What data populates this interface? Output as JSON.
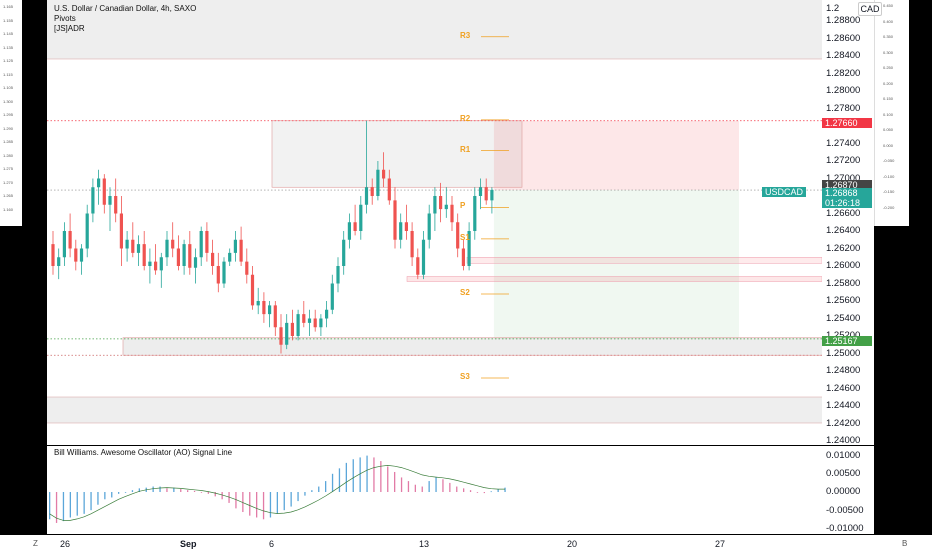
{
  "chart_header": {
    "symbol_line": "U.S. Dollar / Canadian Dollar, 4h, SAXO",
    "indicator_1": "Pivots",
    "indicator_2": "[JS]ADR"
  },
  "currency_button": "CAD",
  "price_axis_ticks": [
    "1.28800",
    "1.28600",
    "1.28400",
    "1.28200",
    "1.28000",
    "1.27800",
    "1.27600",
    "1.27400",
    "1.27200",
    "1.27000",
    "1.26800",
    "1.26600",
    "1.26400",
    "1.26200",
    "1.26000",
    "1.25800",
    "1.25600",
    "1.25400",
    "1.25200",
    "1.25000",
    "1.24800",
    "1.24600",
    "1.24400",
    "1.24200",
    "1.24000"
  ],
  "price_axis_top_tick": "1.2",
  "price_badges": {
    "target": "1.27660",
    "previous": "1.26870",
    "current": "1.26868",
    "countdown": "01:26:18",
    "stop": "1.25167"
  },
  "symbol_tag": "USDCAD",
  "pivot_labels": [
    "R3",
    "R2",
    "R1",
    "P",
    "S1",
    "S2",
    "S3"
  ],
  "oscillator": {
    "title": "Bill Williams. Awesome Oscillator (AO) Signal Line",
    "ticks": [
      "0.01000",
      "0.00500",
      "0.00000",
      "-0.00500",
      "-0.01000"
    ]
  },
  "time_axis": [
    "26",
    "Sep",
    "6",
    "13",
    "20",
    "27"
  ],
  "corner_buttons": {
    "left": "Z",
    "right": "B"
  },
  "left_strip_ticks": [
    "1.165",
    "1.155",
    "1.145",
    "1.135",
    "1.125",
    "1.115",
    "1.105",
    "1.300",
    "1.295",
    "1.290",
    "1.285",
    "1.280",
    "1.275",
    "1.270",
    "1.265",
    "1.160"
  ],
  "right_strip_ticks": [
    "0.450",
    "0.400",
    "0.350",
    "0.300",
    "0.250",
    "0.200",
    "0.150",
    "0.100",
    "0.050",
    "0.000",
    "-0.050",
    "-0.100",
    "-0.150",
    "-0.200"
  ],
  "colors": {
    "bull": "#26a69a",
    "bear": "#ef5350",
    "pivot": "#f0a020",
    "target": "#f23645",
    "stop": "#43a047",
    "symbol": "#26a69a"
  },
  "chart_data": {
    "type": "candlestick",
    "title": "U.S. Dollar / Canadian Dollar, 4h, SAXO",
    "ylim": [
      1.24,
      1.29
    ],
    "x_ticks": [
      "26",
      "Sep",
      "6",
      "13",
      "20",
      "27"
    ],
    "position": {
      "entry": 1.26868,
      "target": 1.2766,
      "stop": 1.25167
    },
    "candles": [
      {
        "o": 1.2625,
        "h": 1.264,
        "l": 1.259,
        "c": 1.26
      },
      {
        "o": 1.26,
        "h": 1.262,
        "l": 1.2585,
        "c": 1.261
      },
      {
        "o": 1.261,
        "h": 1.265,
        "l": 1.26,
        "c": 1.264
      },
      {
        "o": 1.264,
        "h": 1.266,
        "l": 1.261,
        "c": 1.262
      },
      {
        "o": 1.262,
        "h": 1.263,
        "l": 1.2595,
        "c": 1.2605
      },
      {
        "o": 1.2605,
        "h": 1.2625,
        "l": 1.259,
        "c": 1.262
      },
      {
        "o": 1.262,
        "h": 1.267,
        "l": 1.261,
        "c": 1.266
      },
      {
        "o": 1.266,
        "h": 1.27,
        "l": 1.265,
        "c": 1.269
      },
      {
        "o": 1.269,
        "h": 1.271,
        "l": 1.267,
        "c": 1.27
      },
      {
        "o": 1.27,
        "h": 1.2705,
        "l": 1.266,
        "c": 1.267
      },
      {
        "o": 1.267,
        "h": 1.269,
        "l": 1.264,
        "c": 1.268
      },
      {
        "o": 1.268,
        "h": 1.27,
        "l": 1.265,
        "c": 1.266
      },
      {
        "o": 1.266,
        "h": 1.268,
        "l": 1.26,
        "c": 1.262
      },
      {
        "o": 1.262,
        "h": 1.264,
        "l": 1.2605,
        "c": 1.263
      },
      {
        "o": 1.263,
        "h": 1.265,
        "l": 1.261,
        "c": 1.2615
      },
      {
        "o": 1.2615,
        "h": 1.2635,
        "l": 1.26,
        "c": 1.2625
      },
      {
        "o": 1.2625,
        "h": 1.264,
        "l": 1.2595,
        "c": 1.26
      },
      {
        "o": 1.26,
        "h": 1.262,
        "l": 1.258,
        "c": 1.2605
      },
      {
        "o": 1.2605,
        "h": 1.2625,
        "l": 1.259,
        "c": 1.2595
      },
      {
        "o": 1.2595,
        "h": 1.2615,
        "l": 1.2575,
        "c": 1.261
      },
      {
        "o": 1.261,
        "h": 1.264,
        "l": 1.26,
        "c": 1.263
      },
      {
        "o": 1.263,
        "h": 1.265,
        "l": 1.261,
        "c": 1.262
      },
      {
        "o": 1.262,
        "h": 1.2635,
        "l": 1.2595,
        "c": 1.26
      },
      {
        "o": 1.26,
        "h": 1.263,
        "l": 1.259,
        "c": 1.2625
      },
      {
        "o": 1.2625,
        "h": 1.264,
        "l": 1.259,
        "c": 1.2598
      },
      {
        "o": 1.2598,
        "h": 1.262,
        "l": 1.258,
        "c": 1.261
      },
      {
        "o": 1.261,
        "h": 1.2645,
        "l": 1.26,
        "c": 1.264
      },
      {
        "o": 1.264,
        "h": 1.265,
        "l": 1.2605,
        "c": 1.2615
      },
      {
        "o": 1.2615,
        "h": 1.263,
        "l": 1.259,
        "c": 1.26
      },
      {
        "o": 1.26,
        "h": 1.2615,
        "l": 1.257,
        "c": 1.258
      },
      {
        "o": 1.258,
        "h": 1.261,
        "l": 1.2575,
        "c": 1.2605
      },
      {
        "o": 1.2605,
        "h": 1.262,
        "l": 1.26,
        "c": 1.2615
      },
      {
        "o": 1.2615,
        "h": 1.264,
        "l": 1.2605,
        "c": 1.263
      },
      {
        "o": 1.263,
        "h": 1.2645,
        "l": 1.26,
        "c": 1.2605
      },
      {
        "o": 1.2605,
        "h": 1.262,
        "l": 1.258,
        "c": 1.259
      },
      {
        "o": 1.259,
        "h": 1.26,
        "l": 1.255,
        "c": 1.2555
      },
      {
        "o": 1.2555,
        "h": 1.2575,
        "l": 1.2545,
        "c": 1.256
      },
      {
        "o": 1.256,
        "h": 1.257,
        "l": 1.2535,
        "c": 1.2545
      },
      {
        "o": 1.2545,
        "h": 1.256,
        "l": 1.253,
        "c": 1.2555
      },
      {
        "o": 1.2555,
        "h": 1.256,
        "l": 1.252,
        "c": 1.253
      },
      {
        "o": 1.253,
        "h": 1.2545,
        "l": 1.25,
        "c": 1.251
      },
      {
        "o": 1.251,
        "h": 1.2545,
        "l": 1.2505,
        "c": 1.2535
      },
      {
        "o": 1.2535,
        "h": 1.255,
        "l": 1.2515,
        "c": 1.252
      },
      {
        "o": 1.252,
        "h": 1.255,
        "l": 1.2515,
        "c": 1.2545
      },
      {
        "o": 1.2545,
        "h": 1.256,
        "l": 1.253,
        "c": 1.2535
      },
      {
        "o": 1.2535,
        "h": 1.255,
        "l": 1.252,
        "c": 1.254
      },
      {
        "o": 1.254,
        "h": 1.255,
        "l": 1.2525,
        "c": 1.253
      },
      {
        "o": 1.253,
        "h": 1.2545,
        "l": 1.252,
        "c": 1.254
      },
      {
        "o": 1.254,
        "h": 1.256,
        "l": 1.253,
        "c": 1.255
      },
      {
        "o": 1.255,
        "h": 1.259,
        "l": 1.2545,
        "c": 1.258
      },
      {
        "o": 1.258,
        "h": 1.261,
        "l": 1.257,
        "c": 1.26
      },
      {
        "o": 1.26,
        "h": 1.264,
        "l": 1.259,
        "c": 1.263
      },
      {
        "o": 1.263,
        "h": 1.266,
        "l": 1.262,
        "c": 1.265
      },
      {
        "o": 1.265,
        "h": 1.267,
        "l": 1.2635,
        "c": 1.264
      },
      {
        "o": 1.264,
        "h": 1.268,
        "l": 1.263,
        "c": 1.267
      },
      {
        "o": 1.267,
        "h": 1.2766,
        "l": 1.266,
        "c": 1.269
      },
      {
        "o": 1.269,
        "h": 1.27,
        "l": 1.267,
        "c": 1.268
      },
      {
        "o": 1.268,
        "h": 1.272,
        "l": 1.2675,
        "c": 1.271
      },
      {
        "o": 1.271,
        "h": 1.273,
        "l": 1.269,
        "c": 1.27
      },
      {
        "o": 1.27,
        "h": 1.271,
        "l": 1.267,
        "c": 1.2675
      },
      {
        "o": 1.2675,
        "h": 1.269,
        "l": 1.262,
        "c": 1.263
      },
      {
        "o": 1.263,
        "h": 1.266,
        "l": 1.262,
        "c": 1.265
      },
      {
        "o": 1.265,
        "h": 1.267,
        "l": 1.263,
        "c": 1.264
      },
      {
        "o": 1.264,
        "h": 1.265,
        "l": 1.26,
        "c": 1.261
      },
      {
        "o": 1.261,
        "h": 1.262,
        "l": 1.2585,
        "c": 1.259
      },
      {
        "o": 1.259,
        "h": 1.264,
        "l": 1.2585,
        "c": 1.263
      },
      {
        "o": 1.263,
        "h": 1.267,
        "l": 1.262,
        "c": 1.266
      },
      {
        "o": 1.266,
        "h": 1.269,
        "l": 1.264,
        "c": 1.268
      },
      {
        "o": 1.268,
        "h": 1.2695,
        "l": 1.265,
        "c": 1.2665
      },
      {
        "o": 1.2665,
        "h": 1.269,
        "l": 1.2655,
        "c": 1.267
      },
      {
        "o": 1.267,
        "h": 1.268,
        "l": 1.264,
        "c": 1.265
      },
      {
        "o": 1.265,
        "h": 1.266,
        "l": 1.261,
        "c": 1.262
      },
      {
        "o": 1.262,
        "h": 1.263,
        "l": 1.2595,
        "c": 1.26
      },
      {
        "o": 1.26,
        "h": 1.265,
        "l": 1.2595,
        "c": 1.264
      },
      {
        "o": 1.264,
        "h": 1.269,
        "l": 1.263,
        "c": 1.268
      },
      {
        "o": 1.268,
        "h": 1.27,
        "l": 1.2665,
        "c": 1.269
      },
      {
        "o": 1.269,
        "h": 1.27,
        "l": 1.267,
        "c": 1.2675
      },
      {
        "o": 1.2675,
        "h": 1.269,
        "l": 1.266,
        "c": 1.2687
      }
    ],
    "oscillator": {
      "name": "Bill Williams. Awesome Oscillator (AO) Signal Line",
      "ylim": [
        -0.012,
        0.011
      ],
      "histogram": [
        -0.0075,
        -0.0085,
        -0.008,
        -0.007,
        -0.0065,
        -0.006,
        -0.005,
        -0.0035,
        -0.002,
        -0.0015,
        -0.0005,
        0.0,
        0.0005,
        0.001,
        0.0012,
        0.0015,
        0.0015,
        0.001,
        0.0012,
        0.0008,
        0.0005,
        0.0003,
        0.0,
        -0.0005,
        -0.0012,
        -0.002,
        -0.003,
        -0.0045,
        -0.0055,
        -0.0065,
        -0.007,
        -0.0075,
        -0.007,
        -0.006,
        -0.005,
        -0.004,
        -0.0025,
        -0.001,
        0.0005,
        0.0015,
        0.003,
        0.005,
        0.0065,
        0.008,
        0.009,
        0.0095,
        0.01,
        0.0095,
        0.0085,
        0.007,
        0.0055,
        0.004,
        0.003,
        0.002,
        0.0015,
        0.003,
        0.004,
        0.0035,
        0.0025,
        0.0015,
        0.001,
        0.0005,
        0.0,
        -0.0003,
        0.0002,
        0.0008,
        0.0012
      ],
      "signal": [
        -0.006,
        -0.0072,
        -0.0078,
        -0.0078,
        -0.0074,
        -0.0068,
        -0.006,
        -0.005,
        -0.004,
        -0.003,
        -0.002,
        -0.0012,
        -0.0005,
        0.0002,
        0.0006,
        0.0009,
        0.0011,
        0.0012,
        0.0011,
        0.001,
        0.0008,
        0.0006,
        0.0004,
        0.0001,
        -0.0003,
        -0.0008,
        -0.0014,
        -0.0021,
        -0.0029,
        -0.0037,
        -0.0045,
        -0.0052,
        -0.0057,
        -0.0059,
        -0.0058,
        -0.0055,
        -0.0049,
        -0.0041,
        -0.0032,
        -0.0022,
        -0.0011,
        0.0001,
        0.0014,
        0.0027,
        0.0039,
        0.005,
        0.006,
        0.0067,
        0.0071,
        0.0073,
        0.0071,
        0.0067,
        0.0061,
        0.0054,
        0.0047,
        0.0043,
        0.0041,
        0.0039,
        0.0036,
        0.0032,
        0.0027,
        0.0022,
        0.0017,
        0.0012,
        0.0009,
        0.0008,
        0.0008
      ]
    }
  }
}
